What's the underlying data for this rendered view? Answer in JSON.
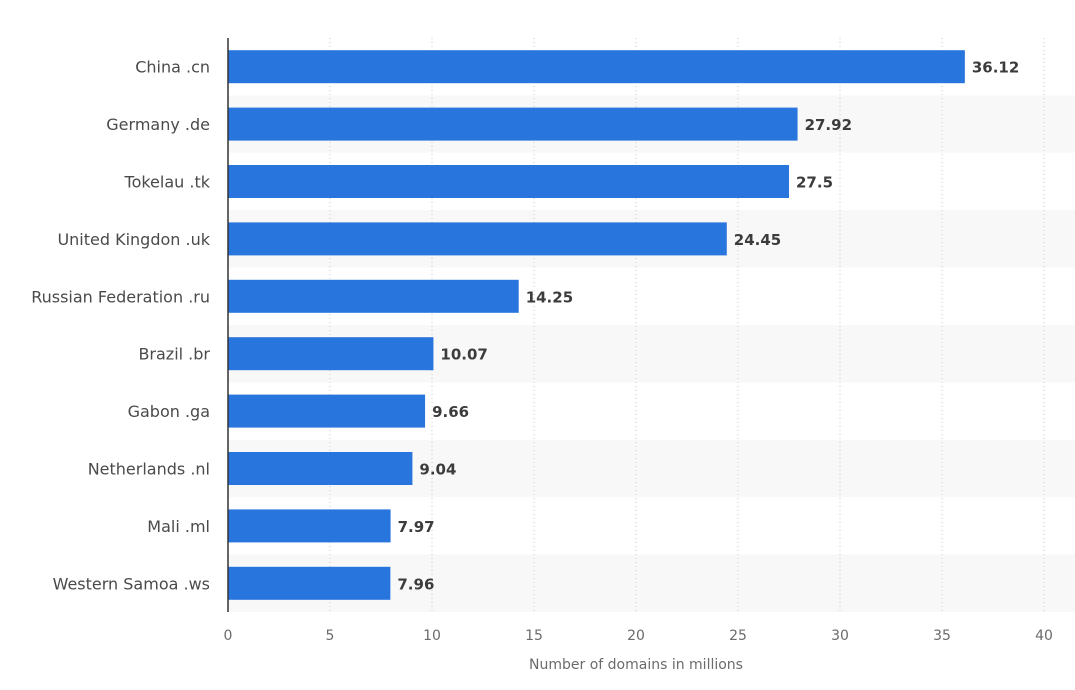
{
  "chart_data": {
    "type": "bar",
    "orientation": "horizontal",
    "categories": [
      "China .cn",
      "Germany .de",
      "Tokelau .tk",
      "United Kingdon .uk",
      "Russian Federation .ru",
      "Brazil .br",
      "Gabon .ga",
      "Netherlands .nl",
      "Mali .ml",
      "Western Samoa .ws"
    ],
    "values": [
      36.12,
      27.92,
      27.5,
      24.45,
      14.25,
      10.07,
      9.66,
      9.04,
      7.97,
      7.96
    ],
    "data_labels": [
      "36.12",
      "27.92",
      "27.5",
      "24.45",
      "14.25",
      "10.07",
      "9.66",
      "9.04",
      "7.97",
      "7.96"
    ],
    "xlabel": "Number of domains in millions",
    "xlim": [
      0,
      40
    ],
    "xticks": [
      "0",
      "5",
      "10",
      "15",
      "20",
      "25",
      "30",
      "35",
      "40"
    ],
    "grid": "vertical dotted",
    "bar_color": "#2875de",
    "band_color": "#f8f8f8"
  }
}
